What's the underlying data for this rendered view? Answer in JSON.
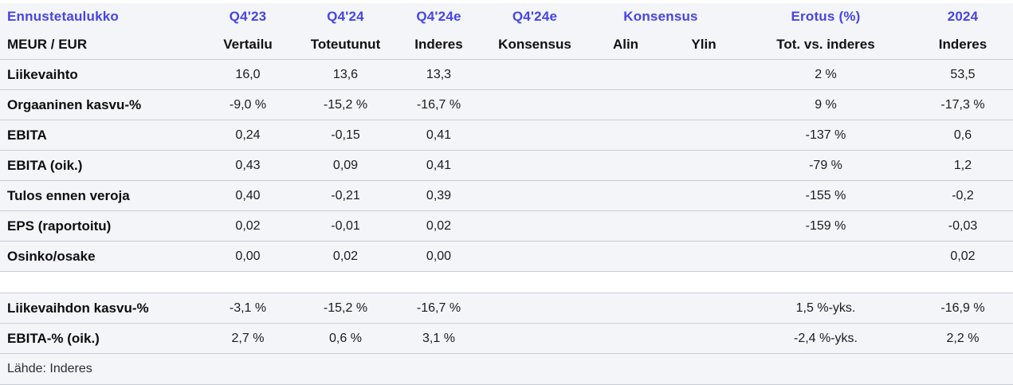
{
  "colors": {
    "header_blue": "#4545e5",
    "row_background": "#f4f5f8",
    "border": "#c8ccd4",
    "text": "#1b1b1b"
  },
  "table": {
    "header_top": [
      {
        "label": "Ennustetaulukko",
        "span": 1,
        "align": "left"
      },
      {
        "label": "Q4'23",
        "span": 1
      },
      {
        "label": "Q4'24",
        "span": 1
      },
      {
        "label": "Q4'24e",
        "span": 1
      },
      {
        "label": "Q4'24e",
        "span": 1
      },
      {
        "label": "Konsensus",
        "span": 2
      },
      {
        "label": "Erotus (%)",
        "span": 1
      },
      {
        "label": "2024",
        "span": 1
      }
    ],
    "header_sub": [
      "MEUR / EUR",
      "Vertailu",
      "Toteutunut",
      "Inderes",
      "Konsensus",
      "Alin",
      "Ylin",
      "Tot. vs. inderes",
      "Inderes"
    ],
    "rows": [
      {
        "label": "Liikevaihto",
        "values": [
          "16,0",
          "13,6",
          "13,3",
          "",
          "",
          "",
          "2 %",
          "53,5"
        ],
        "spacer_after": false
      },
      {
        "label": "Orgaaninen kasvu-%",
        "values": [
          "-9,0 %",
          "-15,2 %",
          "-16,7 %",
          "",
          "",
          "",
          "9 %",
          "-17,3 %"
        ],
        "spacer_after": false
      },
      {
        "label": "EBITA",
        "values": [
          "0,24",
          "-0,15",
          "0,41",
          "",
          "",
          "",
          "-137 %",
          "0,6"
        ],
        "spacer_after": false
      },
      {
        "label": "EBITA (oik.)",
        "values": [
          "0,43",
          "0,09",
          "0,41",
          "",
          "",
          "",
          "-79 %",
          "1,2"
        ],
        "spacer_after": false
      },
      {
        "label": "Tulos ennen veroja",
        "values": [
          "0,40",
          "-0,21",
          "0,39",
          "",
          "",
          "",
          "-155 %",
          "-0,2"
        ],
        "spacer_after": false
      },
      {
        "label": "EPS (raportoitu)",
        "values": [
          "0,02",
          "-0,01",
          "0,02",
          "",
          "",
          "",
          "-159 %",
          "-0,03"
        ],
        "spacer_after": false
      },
      {
        "label": "Osinko/osake",
        "values": [
          "0,00",
          "0,02",
          "0,00",
          "",
          "",
          "",
          "",
          "0,02"
        ],
        "spacer_after": true
      },
      {
        "label": "Liikevaihdon kasvu-%",
        "values": [
          "-3,1 %",
          "-15,2 %",
          "-16,7 %",
          "",
          "",
          "",
          "1,5 %-yks.",
          "-16,9 %"
        ],
        "spacer_after": false
      },
      {
        "label": "EBITA-% (oik.)",
        "values": [
          "2,7 %",
          "0,6 %",
          "3,1 %",
          "",
          "",
          "",
          "-2,4 %-yks.",
          "2,2 %"
        ],
        "spacer_after": false
      }
    ],
    "source": "Lähde: Inderes"
  },
  "chart_data": {
    "type": "table",
    "title": "Ennustetaulukko",
    "unit_label": "MEUR / EUR",
    "columns": [
      "MEUR / EUR",
      "Q4'23 Vertailu",
      "Q4'24 Toteutunut",
      "Q4'24e Inderes",
      "Q4'24e Konsensus",
      "Konsensus Alin",
      "Konsensus Ylin",
      "Erotus (%) Tot. vs. inderes",
      "2024 Inderes"
    ],
    "rows": [
      [
        "Liikevaihto",
        "16,0",
        "13,6",
        "13,3",
        "",
        "",
        "",
        "2 %",
        "53,5"
      ],
      [
        "Orgaaninen kasvu-%",
        "-9,0 %",
        "-15,2 %",
        "-16,7 %",
        "",
        "",
        "",
        "9 %",
        "-17,3 %"
      ],
      [
        "EBITA",
        "0,24",
        "-0,15",
        "0,41",
        "",
        "",
        "",
        "-137 %",
        "0,6"
      ],
      [
        "EBITA (oik.)",
        "0,43",
        "0,09",
        "0,41",
        "",
        "",
        "",
        "-79 %",
        "1,2"
      ],
      [
        "Tulos ennen veroja",
        "0,40",
        "-0,21",
        "0,39",
        "",
        "",
        "",
        "-155 %",
        "-0,2"
      ],
      [
        "EPS (raportoitu)",
        "0,02",
        "-0,01",
        "0,02",
        "",
        "",
        "",
        "-159 %",
        "-0,03"
      ],
      [
        "Osinko/osake",
        "0,00",
        "0,02",
        "0,00",
        "",
        "",
        "",
        "",
        "0,02"
      ],
      [
        "Liikevaihdon kasvu-%",
        "-3,1 %",
        "-15,2 %",
        "-16,7 %",
        "",
        "",
        "",
        "1,5 %-yks.",
        "-16,9 %"
      ],
      [
        "EBITA-% (oik.)",
        "2,7 %",
        "0,6 %",
        "3,1 %",
        "",
        "",
        "",
        "-2,4 %-yks.",
        "2,2 %"
      ]
    ],
    "source": "Lähde: Inderes"
  }
}
